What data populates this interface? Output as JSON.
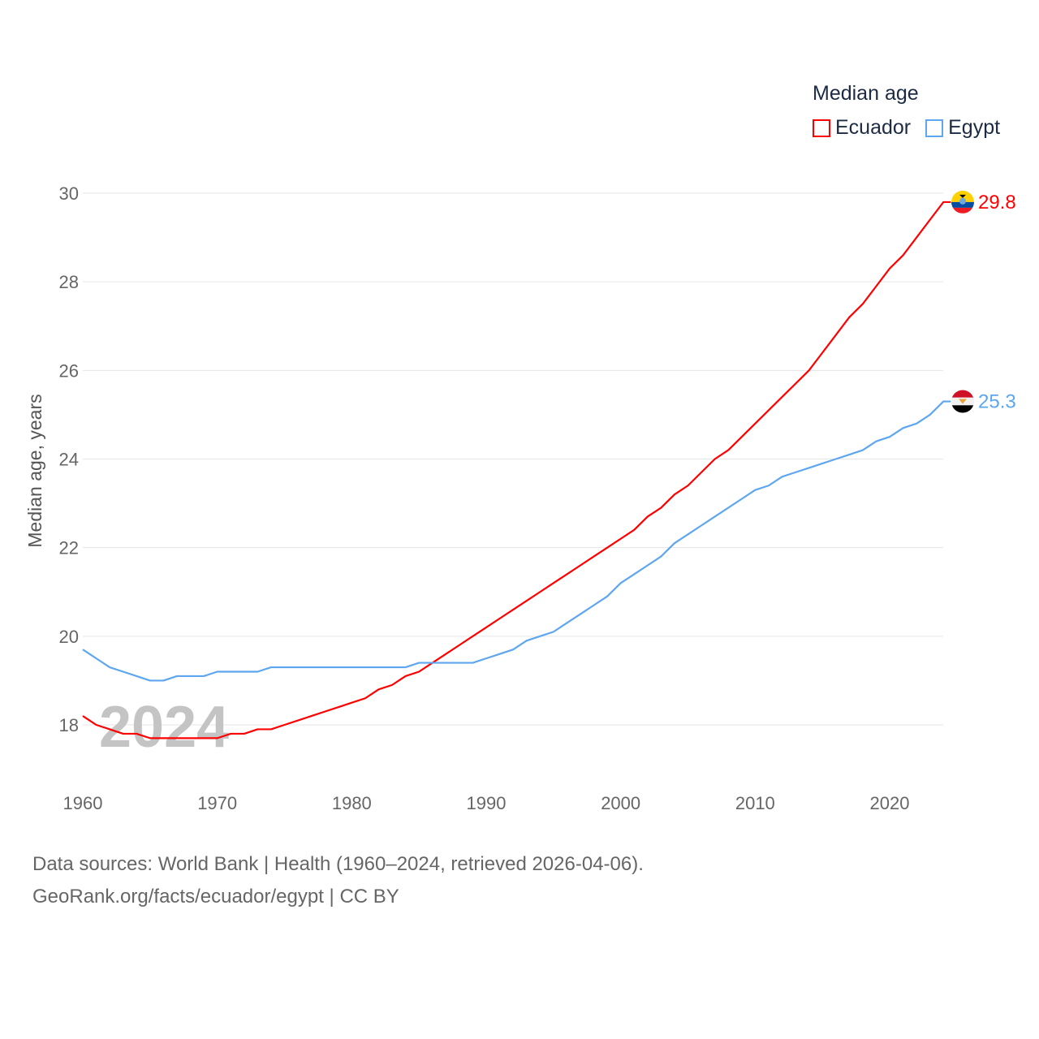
{
  "chart_data": {
    "type": "line",
    "title": "Median age",
    "xlabel": "",
    "ylabel": "Median age, years",
    "xlim": [
      1960,
      2024
    ],
    "ylim": [
      17,
      30
    ],
    "xticks": [
      1960,
      1970,
      1980,
      1990,
      2000,
      2010,
      2020
    ],
    "yticks": [
      18,
      20,
      22,
      24,
      26,
      28,
      30
    ],
    "grid": true,
    "legend_position": "top-right",
    "year_watermark": "2024",
    "x": [
      1960,
      1961,
      1962,
      1963,
      1964,
      1965,
      1966,
      1967,
      1968,
      1969,
      1970,
      1971,
      1972,
      1973,
      1974,
      1975,
      1976,
      1977,
      1978,
      1979,
      1980,
      1981,
      1982,
      1983,
      1984,
      1985,
      1986,
      1987,
      1988,
      1989,
      1990,
      1991,
      1992,
      1993,
      1994,
      1995,
      1996,
      1997,
      1998,
      1999,
      2000,
      2001,
      2002,
      2003,
      2004,
      2005,
      2006,
      2007,
      2008,
      2009,
      2010,
      2011,
      2012,
      2013,
      2014,
      2015,
      2016,
      2017,
      2018,
      2019,
      2020,
      2021,
      2022,
      2023,
      2024
    ],
    "series": [
      {
        "name": "Ecuador",
        "color": "#ff0000",
        "end_label": "29.8",
        "values": [
          18.2,
          18.0,
          17.9,
          17.8,
          17.8,
          17.7,
          17.7,
          17.7,
          17.7,
          17.7,
          17.7,
          17.8,
          17.8,
          17.9,
          17.9,
          18.0,
          18.1,
          18.2,
          18.3,
          18.4,
          18.5,
          18.6,
          18.8,
          18.9,
          19.1,
          19.2,
          19.4,
          19.6,
          19.8,
          20.0,
          20.2,
          20.4,
          20.6,
          20.8,
          21.0,
          21.2,
          21.4,
          21.6,
          21.8,
          22.0,
          22.2,
          22.4,
          22.7,
          22.9,
          23.2,
          23.4,
          23.7,
          24.0,
          24.2,
          24.5,
          24.8,
          25.1,
          25.4,
          25.7,
          26.0,
          26.4,
          26.8,
          27.2,
          27.5,
          27.9,
          28.3,
          28.6,
          29.0,
          29.4,
          29.8
        ]
      },
      {
        "name": "Egypt",
        "color": "#5ea6ef",
        "end_label": "25.3",
        "values": [
          19.7,
          19.5,
          19.3,
          19.2,
          19.1,
          19.0,
          19.0,
          19.1,
          19.1,
          19.1,
          19.2,
          19.2,
          19.2,
          19.2,
          19.3,
          19.3,
          19.3,
          19.3,
          19.3,
          19.3,
          19.3,
          19.3,
          19.3,
          19.3,
          19.3,
          19.4,
          19.4,
          19.4,
          19.4,
          19.4,
          19.5,
          19.6,
          19.7,
          19.9,
          20.0,
          20.1,
          20.3,
          20.5,
          20.7,
          20.9,
          21.2,
          21.4,
          21.6,
          21.8,
          22.1,
          22.3,
          22.5,
          22.7,
          22.9,
          23.1,
          23.3,
          23.4,
          23.6,
          23.7,
          23.8,
          23.9,
          24.0,
          24.1,
          24.2,
          24.4,
          24.5,
          24.7,
          24.8,
          25.0,
          25.3
        ]
      }
    ]
  },
  "source": {
    "line1": "Data sources: World Bank | Health (1960–2024, retrieved 2026-04-06).",
    "line2": "GeoRank.org/facts/ecuador/egypt | CC BY"
  }
}
